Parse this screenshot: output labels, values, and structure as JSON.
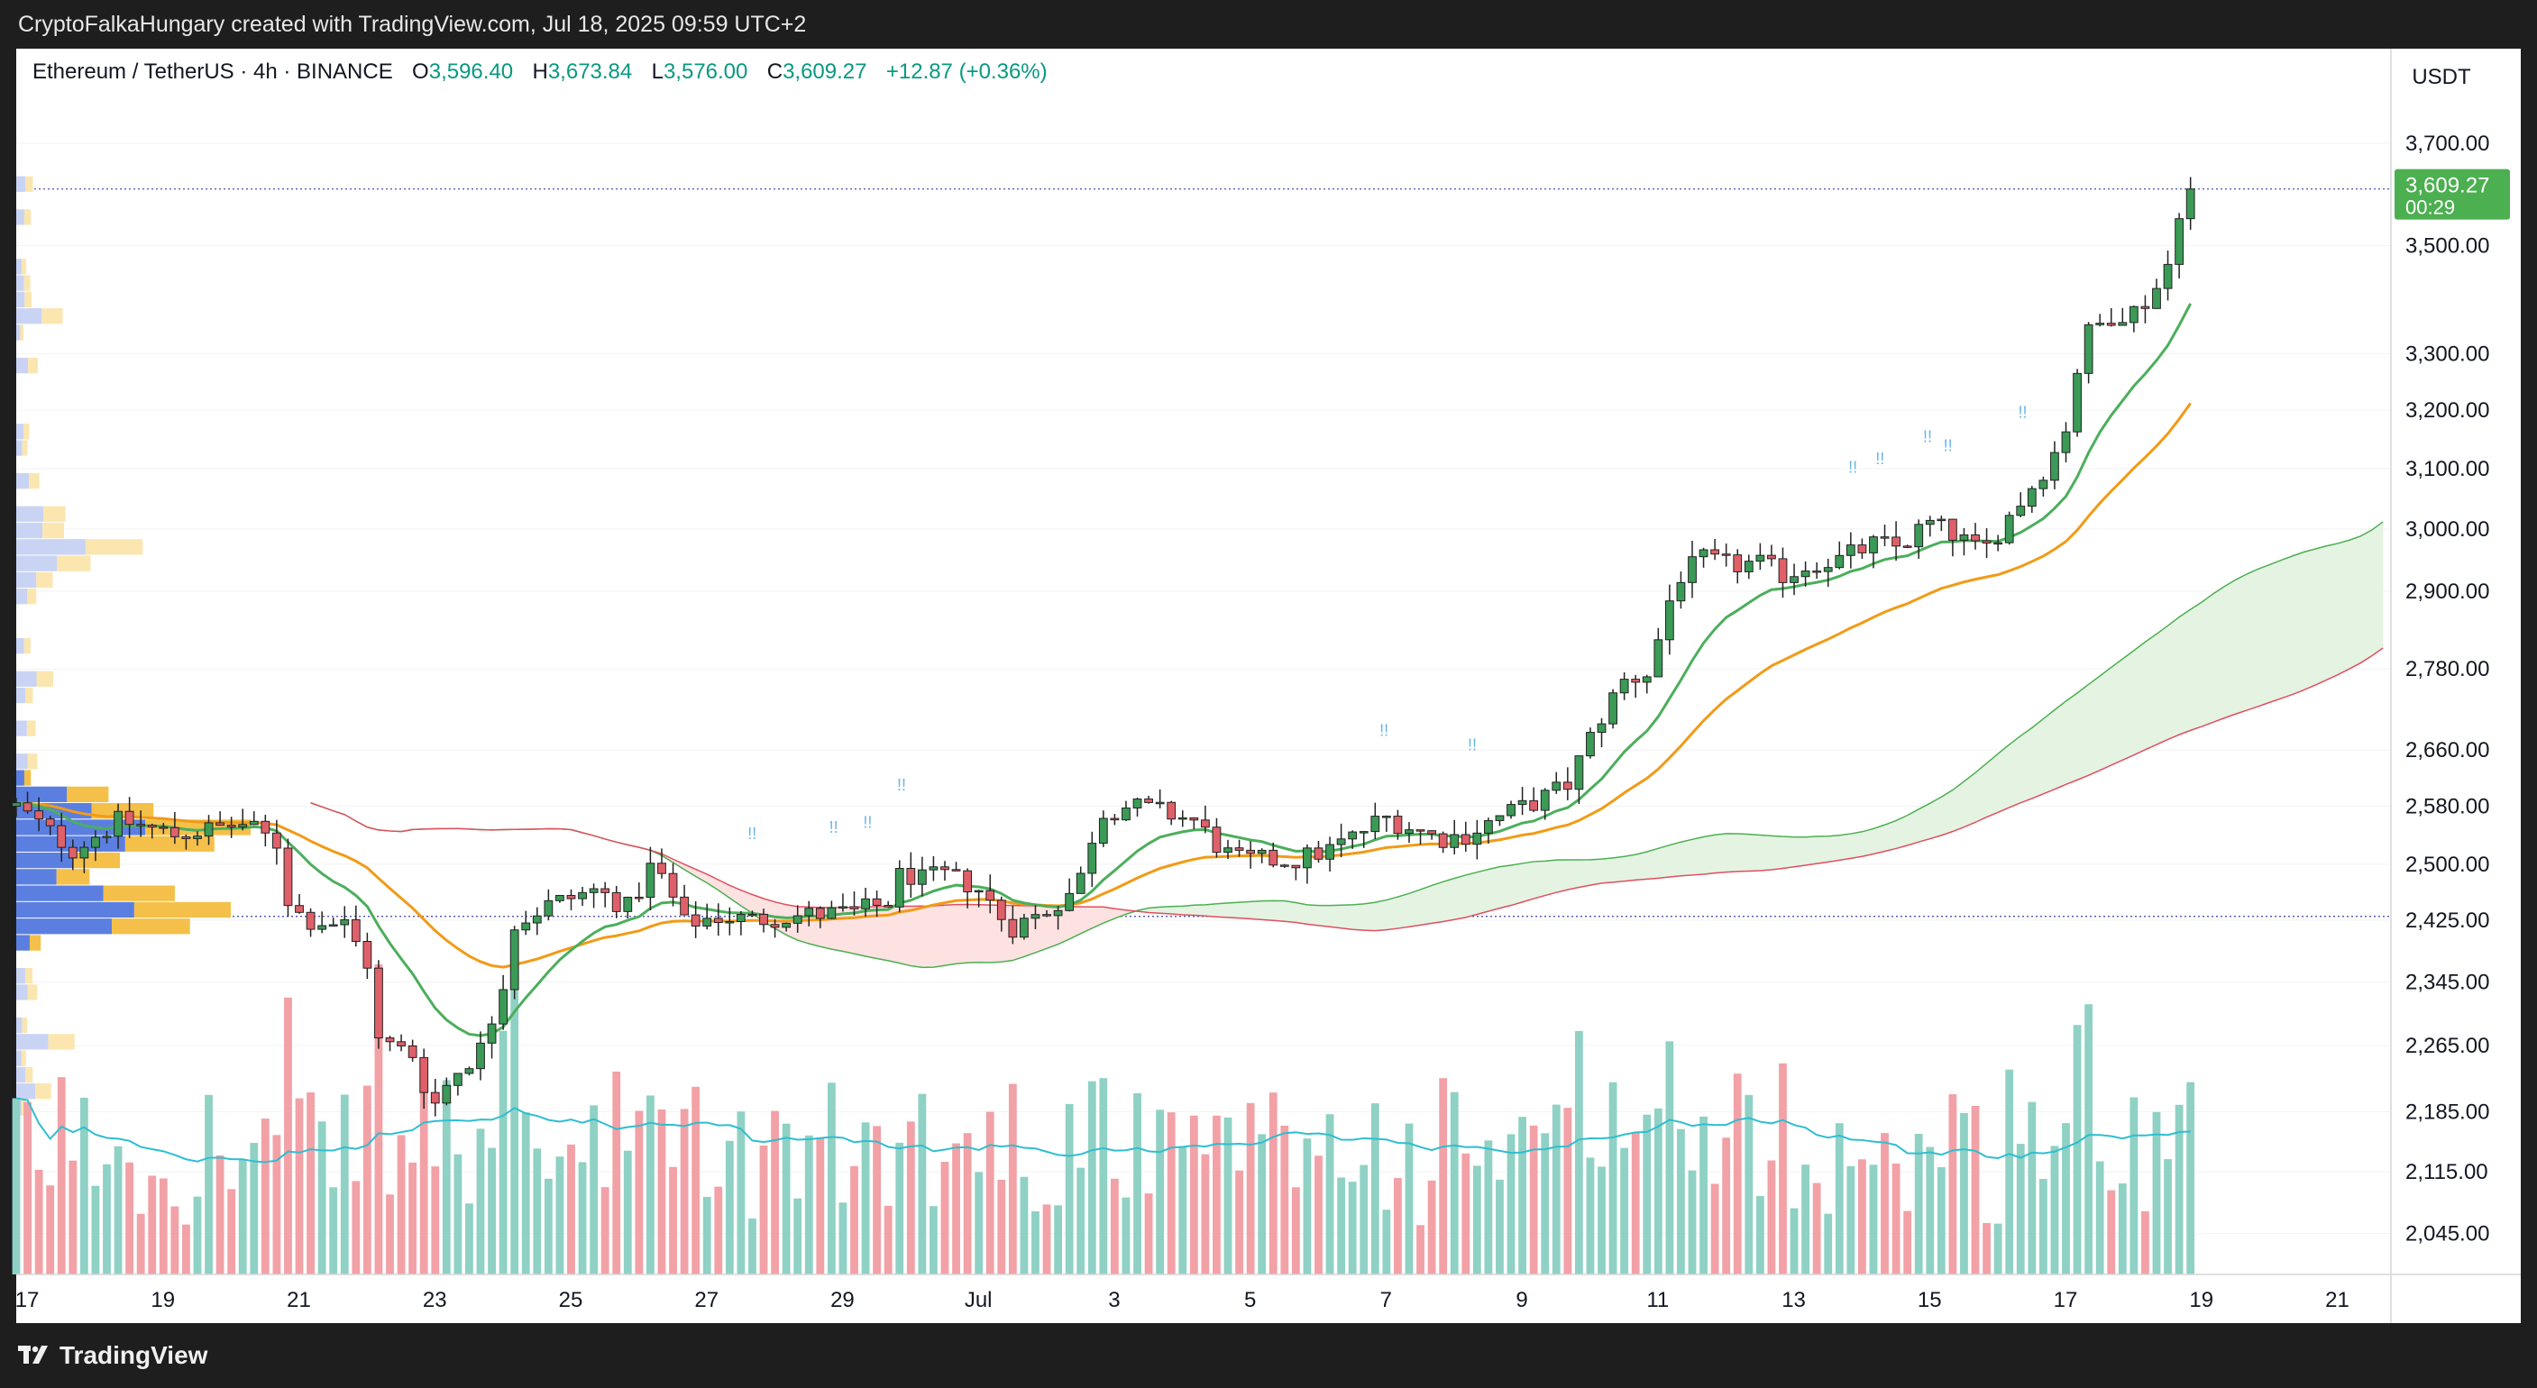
{
  "header": {
    "credit": "CryptoFalkaHungary created with TradingView.com, Jul 18, 2025 09:59 UTC+2"
  },
  "legend": {
    "symbol": "Ethereum / TetherUS · 4h · BINANCE",
    "open_label": "O",
    "open": "3,596.40",
    "high_label": "H",
    "high": "3,673.84",
    "low_label": "L",
    "low": "3,576.00",
    "close_label": "C",
    "close": "3,609.27",
    "change": "+12.87 (+0.36%)"
  },
  "price_scale": {
    "currency": "USDT",
    "last_price": "3,609.27",
    "countdown": "00:29"
  },
  "footer": {
    "brand": "TradingView"
  },
  "colors": {
    "up": "#3a9a56",
    "down": "#e0606a",
    "ema_fast": "#4cae5c",
    "ema_slow": "#f29a16",
    "volume_ma": "#2ebed0",
    "cloud_bull": "#e4f3e2",
    "cloud_bear": "#fde2e2",
    "last_price_bg": "#4caf50"
  },
  "chart_data": {
    "type": "candlestick",
    "symbol": "ETH/USDT",
    "timeframe": "4h",
    "y_ticks": [
      "3,700.00",
      "3,500.00",
      "3,300.00",
      "3,200.00",
      "3,100.00",
      "3,000.00",
      "2,900.00",
      "2,780.00",
      "2,660.00",
      "2,580.00",
      "2,500.00",
      "2,425.00",
      "2,345.00",
      "2,265.00",
      "2,185.00",
      "2,115.00",
      "2,045.00"
    ],
    "y_tick_values": [
      3700,
      3500,
      3300,
      3200,
      3100,
      3000,
      2900,
      2780,
      2660,
      2580,
      2500,
      2425,
      2345,
      2265,
      2185,
      2115,
      2045
    ],
    "x_ticks": [
      "17",
      "19",
      "21",
      "23",
      "25",
      "27",
      "29",
      "Jul",
      "3",
      "5",
      "7",
      "9",
      "11",
      "13",
      "15",
      "17",
      "19",
      "21"
    ],
    "x_tick_days": [
      -13.67,
      -11.67,
      -9.67,
      -7.67,
      -5.67,
      -3.67,
      -1.67,
      0.33,
      2.33,
      4.33,
      6.33,
      8.33,
      10.33,
      12.33,
      14.33,
      16.33,
      18.33,
      20.33
    ],
    "x_range_days": [
      -13.83,
      21.12
    ],
    "y_range": [
      2000,
      3790
    ],
    "log_scale": true,
    "last_price": 3609.27,
    "horizontal_level": 2430,
    "waypoints": [
      [
        -13.83,
        2580
      ],
      [
        -13.0,
        2520
      ],
      [
        -12.3,
        2560
      ],
      [
        -11.5,
        2540
      ],
      [
        -10.5,
        2555
      ],
      [
        -10.0,
        2530
      ],
      [
        -9.8,
        2440
      ],
      [
        -9.5,
        2425
      ],
      [
        -9.0,
        2420
      ],
      [
        -8.6,
        2360
      ],
      [
        -8.5,
        2270
      ],
      [
        -8.0,
        2255
      ],
      [
        -7.7,
        2190
      ],
      [
        -7.4,
        2230
      ],
      [
        -7.0,
        2260
      ],
      [
        -6.7,
        2330
      ],
      [
        -6.5,
        2420
      ],
      [
        -6.0,
        2445
      ],
      [
        -5.3,
        2465
      ],
      [
        -4.8,
        2440
      ],
      [
        -4.5,
        2495
      ],
      [
        -4.3,
        2480
      ],
      [
        -4.0,
        2420
      ],
      [
        -3.5,
        2430
      ],
      [
        -3.0,
        2425
      ],
      [
        -2.5,
        2430
      ],
      [
        -1.5,
        2435
      ],
      [
        -1.0,
        2448
      ],
      [
        -0.8,
        2490
      ],
      [
        -0.5,
        2478
      ],
      [
        -0.2,
        2485
      ],
      [
        0.3,
        2470
      ],
      [
        0.8,
        2415
      ],
      [
        1.3,
        2435
      ],
      [
        1.8,
        2470
      ],
      [
        2.1,
        2570
      ],
      [
        2.5,
        2580
      ],
      [
        2.9,
        2575
      ],
      [
        3.5,
        2560
      ],
      [
        3.8,
        2530
      ],
      [
        4.1,
        2505
      ],
      [
        4.5,
        2505
      ],
      [
        5.0,
        2505
      ],
      [
        5.5,
        2520
      ],
      [
        5.9,
        2540
      ],
      [
        6.3,
        2565
      ],
      [
        6.7,
        2550
      ],
      [
        7.1,
        2535
      ],
      [
        7.5,
        2540
      ],
      [
        8.0,
        2565
      ],
      [
        8.5,
        2585
      ],
      [
        9.0,
        2610
      ],
      [
        9.4,
        2690
      ],
      [
        9.8,
        2760
      ],
      [
        10.2,
        2775
      ],
      [
        10.6,
        2920
      ],
      [
        11.0,
        2950
      ],
      [
        11.4,
        2940
      ],
      [
        11.8,
        2945
      ],
      [
        12.2,
        2925
      ],
      [
        12.6,
        2945
      ],
      [
        13.0,
        2950
      ],
      [
        13.5,
        2975
      ],
      [
        13.9,
        2970
      ],
      [
        14.3,
        3010
      ],
      [
        14.7,
        2990
      ],
      [
        15.1,
        2960
      ],
      [
        15.5,
        3020
      ],
      [
        15.9,
        3080
      ],
      [
        16.3,
        3150
      ],
      [
        16.6,
        3330
      ],
      [
        17.0,
        3370
      ],
      [
        17.4,
        3380
      ],
      [
        17.8,
        3440
      ],
      [
        18.0,
        3570
      ],
      [
        18.17,
        3609.27
      ]
    ],
    "volume_max": 1.0,
    "series": [
      {
        "name": "EMA fast",
        "color": "#4cae5c"
      },
      {
        "name": "EMA slow",
        "color": "#f29a16"
      },
      {
        "name": "Ichimoku cloud"
      },
      {
        "name": "Volume"
      },
      {
        "name": "Volume profile"
      }
    ]
  }
}
